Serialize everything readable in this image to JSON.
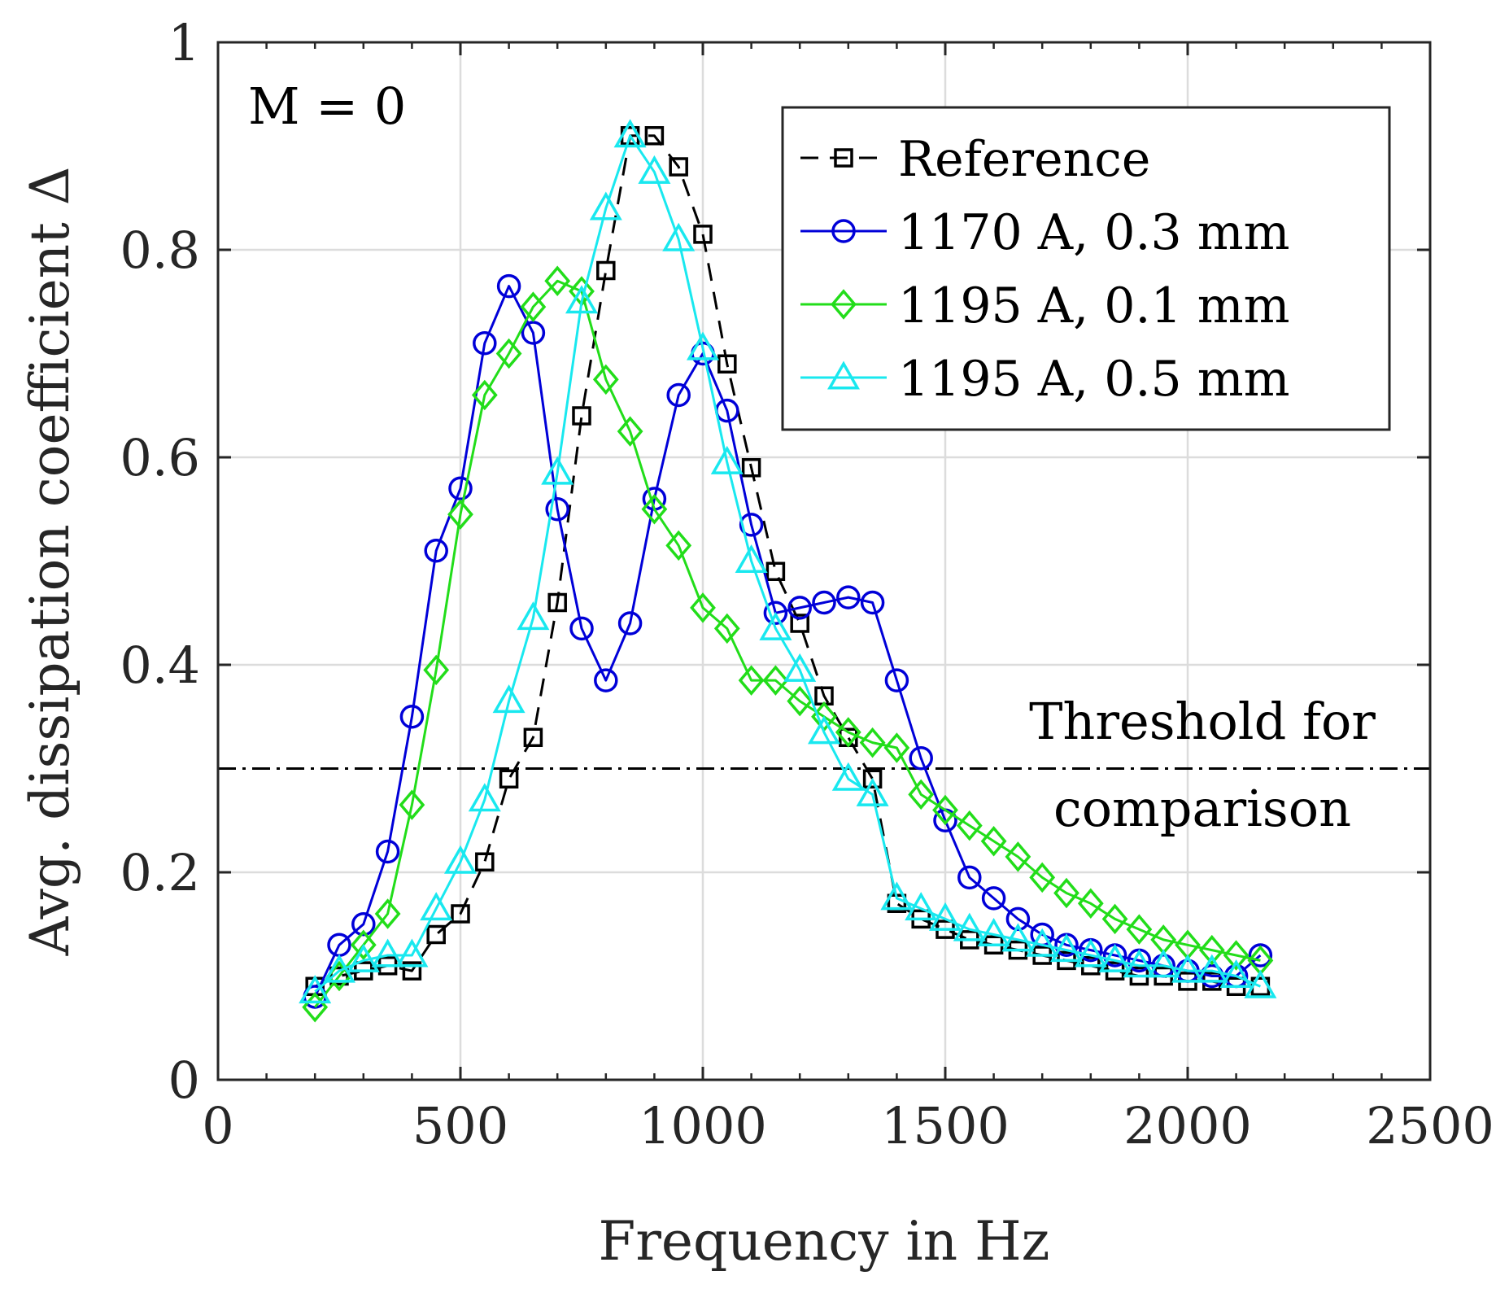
{
  "chart_data": {
    "type": "line",
    "title": "",
    "xlabel": "Frequency in Hz",
    "ylabel": "Avg. dissipation coefficient Δ",
    "xlim": [
      0,
      2500
    ],
    "ylim": [
      0,
      1
    ],
    "xticks": [
      0,
      500,
      1000,
      1500,
      2000,
      2500
    ],
    "xtick_labels": [
      "0",
      "500",
      "1000",
      "1500",
      "2000",
      "2500"
    ],
    "yticks": [
      0,
      0.2,
      0.4,
      0.6,
      0.8,
      1
    ],
    "ytick_labels": [
      "0",
      "0.2",
      "0.4",
      "0.6",
      "0.8",
      "1"
    ],
    "grid": true,
    "legend_position": "top-right",
    "annotations": {
      "mach": "M = 0",
      "threshold_line1": "Threshold for",
      "threshold_line2": "comparison"
    },
    "threshold": 0.3,
    "series": [
      {
        "name": "Reference",
        "color": "#000000",
        "marker": "square",
        "linestyle": "dashed",
        "x": [
          200,
          250,
          300,
          350,
          400,
          450,
          500,
          550,
          600,
          650,
          700,
          750,
          800,
          850,
          900,
          950,
          1000,
          1050,
          1100,
          1150,
          1200,
          1250,
          1300,
          1350,
          1400,
          1450,
          1500,
          1550,
          1600,
          1650,
          1700,
          1750,
          1800,
          1850,
          1900,
          1950,
          2000,
          2050,
          2100,
          2150
        ],
        "values": [
          0.09,
          0.1,
          0.105,
          0.11,
          0.105,
          0.14,
          0.16,
          0.21,
          0.29,
          0.33,
          0.46,
          0.64,
          0.78,
          0.91,
          0.91,
          0.88,
          0.815,
          0.69,
          0.59,
          0.49,
          0.44,
          0.37,
          0.33,
          0.29,
          0.17,
          0.155,
          0.145,
          0.135,
          0.13,
          0.125,
          0.12,
          0.115,
          0.11,
          0.105,
          0.1,
          0.1,
          0.095,
          0.095,
          0.09,
          0.09
        ]
      },
      {
        "name": "1170 A, 0.3 mm",
        "color": "#0000d8",
        "marker": "circle",
        "linestyle": "solid",
        "x": [
          200,
          250,
          300,
          350,
          400,
          450,
          500,
          550,
          600,
          650,
          700,
          750,
          800,
          850,
          900,
          950,
          1000,
          1050,
          1100,
          1150,
          1200,
          1250,
          1300,
          1350,
          1400,
          1450,
          1500,
          1550,
          1600,
          1650,
          1700,
          1750,
          1800,
          1850,
          1900,
          1950,
          2000,
          2050,
          2100,
          2150
        ],
        "values": [
          0.08,
          0.13,
          0.15,
          0.22,
          0.35,
          0.51,
          0.57,
          0.71,
          0.765,
          0.72,
          0.55,
          0.435,
          0.385,
          0.44,
          0.56,
          0.66,
          0.7,
          0.645,
          0.535,
          0.45,
          0.455,
          0.46,
          0.465,
          0.46,
          0.385,
          0.31,
          0.25,
          0.195,
          0.175,
          0.155,
          0.14,
          0.13,
          0.125,
          0.12,
          0.115,
          0.11,
          0.105,
          0.1,
          0.1,
          0.12
        ]
      },
      {
        "name": "1195 A, 0.1 mm",
        "color": "#22dd1a",
        "marker": "diamond",
        "linestyle": "solid",
        "x": [
          200,
          250,
          300,
          350,
          400,
          450,
          500,
          550,
          600,
          650,
          700,
          750,
          800,
          850,
          900,
          950,
          1000,
          1050,
          1100,
          1150,
          1200,
          1250,
          1300,
          1350,
          1400,
          1450,
          1500,
          1550,
          1600,
          1650,
          1700,
          1750,
          1800,
          1850,
          1900,
          1950,
          2000,
          2050,
          2100,
          2150
        ],
        "values": [
          0.07,
          0.1,
          0.13,
          0.16,
          0.265,
          0.395,
          0.545,
          0.66,
          0.7,
          0.745,
          0.77,
          0.76,
          0.675,
          0.625,
          0.55,
          0.515,
          0.455,
          0.435,
          0.385,
          0.385,
          0.365,
          0.35,
          0.335,
          0.325,
          0.32,
          0.275,
          0.26,
          0.245,
          0.23,
          0.215,
          0.195,
          0.18,
          0.17,
          0.155,
          0.145,
          0.135,
          0.13,
          0.125,
          0.12,
          0.115
        ]
      },
      {
        "name": "1195 A, 0.5 mm",
        "color": "#19e8ef",
        "marker": "triangle",
        "linestyle": "solid",
        "x": [
          200,
          250,
          300,
          350,
          400,
          450,
          500,
          550,
          600,
          650,
          700,
          750,
          800,
          850,
          900,
          950,
          1000,
          1050,
          1100,
          1150,
          1200,
          1250,
          1300,
          1350,
          1400,
          1450,
          1500,
          1550,
          1600,
          1650,
          1700,
          1750,
          1800,
          1850,
          1900,
          1950,
          2000,
          2050,
          2100,
          2150
        ],
        "values": [
          0.085,
          0.105,
          0.115,
          0.12,
          0.12,
          0.165,
          0.21,
          0.27,
          0.365,
          0.445,
          0.585,
          0.75,
          0.84,
          0.91,
          0.875,
          0.81,
          0.705,
          0.595,
          0.5,
          0.435,
          0.395,
          0.335,
          0.29,
          0.275,
          0.175,
          0.165,
          0.155,
          0.145,
          0.14,
          0.135,
          0.13,
          0.125,
          0.12,
          0.115,
          0.11,
          0.11,
          0.105,
          0.105,
          0.1,
          0.09
        ]
      }
    ]
  }
}
